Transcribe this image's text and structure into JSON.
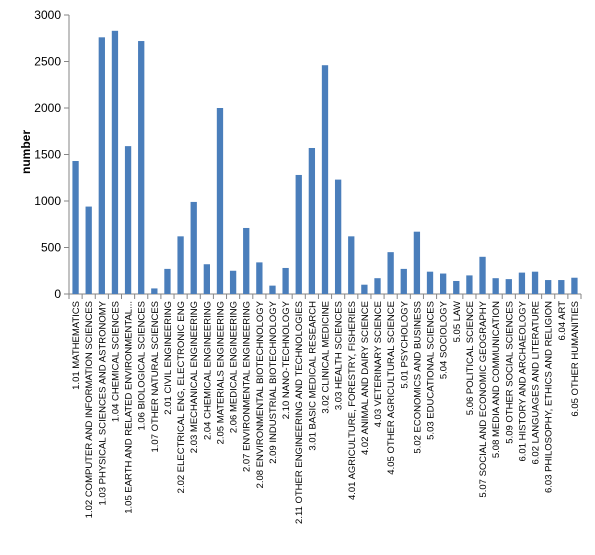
{
  "chart_data": {
    "type": "bar",
    "title": "",
    "xlabel": "",
    "ylabel": "number",
    "ylim": [
      0,
      3000
    ],
    "yticks": [
      0,
      500,
      1000,
      1500,
      2000,
      2500,
      3000
    ],
    "grid": false,
    "bar_color": "#4a7ebb",
    "categories": [
      "1.01 MATHEMATICS",
      "1.02 COMPUTER AND INFORMATION SCIENCES",
      "1.03 PHYSICAL SCIENCES AND ASTRONOMY",
      "1.04 CHEMICAL SCIENCES",
      "1.05 EARTH AND RELATED ENVIRONMENTAL...",
      "1.06 BIOLOGICAL SCIENCES",
      "1.07 OTHER NATURAL SCIENCES",
      "2.01 CIVIL ENGINEERING",
      "2.02 ELECTRICAL ENG, ELECTRONIC ENG",
      "2.03 MECHANICAL ENGINEERING",
      "2.04 CHEMICAL ENGINEERING",
      "2.05 MATERIALS ENGINEERING",
      "2.06 MEDICAL ENGINEERING",
      "2.07 ENVIRONMENTAL ENGINEERING",
      "2.08 ENVIRONMENTAL BIOTECHNOLOGY",
      "2.09 INDUSTRIAL BIOTECHNOLOGY",
      "2.10 NANO-TECHNOLOGY",
      "2.11 OTHER ENGINEERING AND TECHNOLOGIES",
      "3.01 BASIC MEDICAL RESEARCH",
      "3.02 CLINICAL MEDICINE",
      "3.03 HEALTH SCIENCES",
      "4.01 AGRICULTURE, FORESTRY, FISHERIES",
      "4.02 ANIMAL AND DAIRY SCIENCE",
      "4.03 VETERINARY SCIENCE",
      "4.05 OTHER AGRICULTURAL SCIENCE",
      "5.01 PSYCHOLOGY",
      "5.02 ECONOMICS AND BUSINESS",
      "5.03 EDUCATIONAL SCIENCES",
      "5.04 SOCIOLOGY",
      "5.05 LAW",
      "5.06 POLITICAL SCIENCE",
      "5.07 SOCIAL AND ECONOMIC GEOGRAPHY",
      "5.08 MEDIA AND COMMUNICATION",
      "5.09 OTHER SOCIAL SCIENCES",
      "6.01 HISTORY AND ARCHAEOLOGY",
      "6.02 LANGUAGES AND LITERATURE",
      "6.03 PHILOSOPHY, ETHICS AND RELIGION",
      "6.04 ART",
      "6.05 OTHER HUMANITIES"
    ],
    "values": [
      1430,
      940,
      2760,
      2830,
      1590,
      2720,
      60,
      270,
      620,
      990,
      320,
      2000,
      250,
      710,
      340,
      90,
      280,
      1280,
      1570,
      2460,
      1230,
      620,
      100,
      170,
      450,
      270,
      670,
      240,
      220,
      140,
      200,
      400,
      170,
      160,
      230,
      240,
      150,
      150,
      175
    ]
  }
}
